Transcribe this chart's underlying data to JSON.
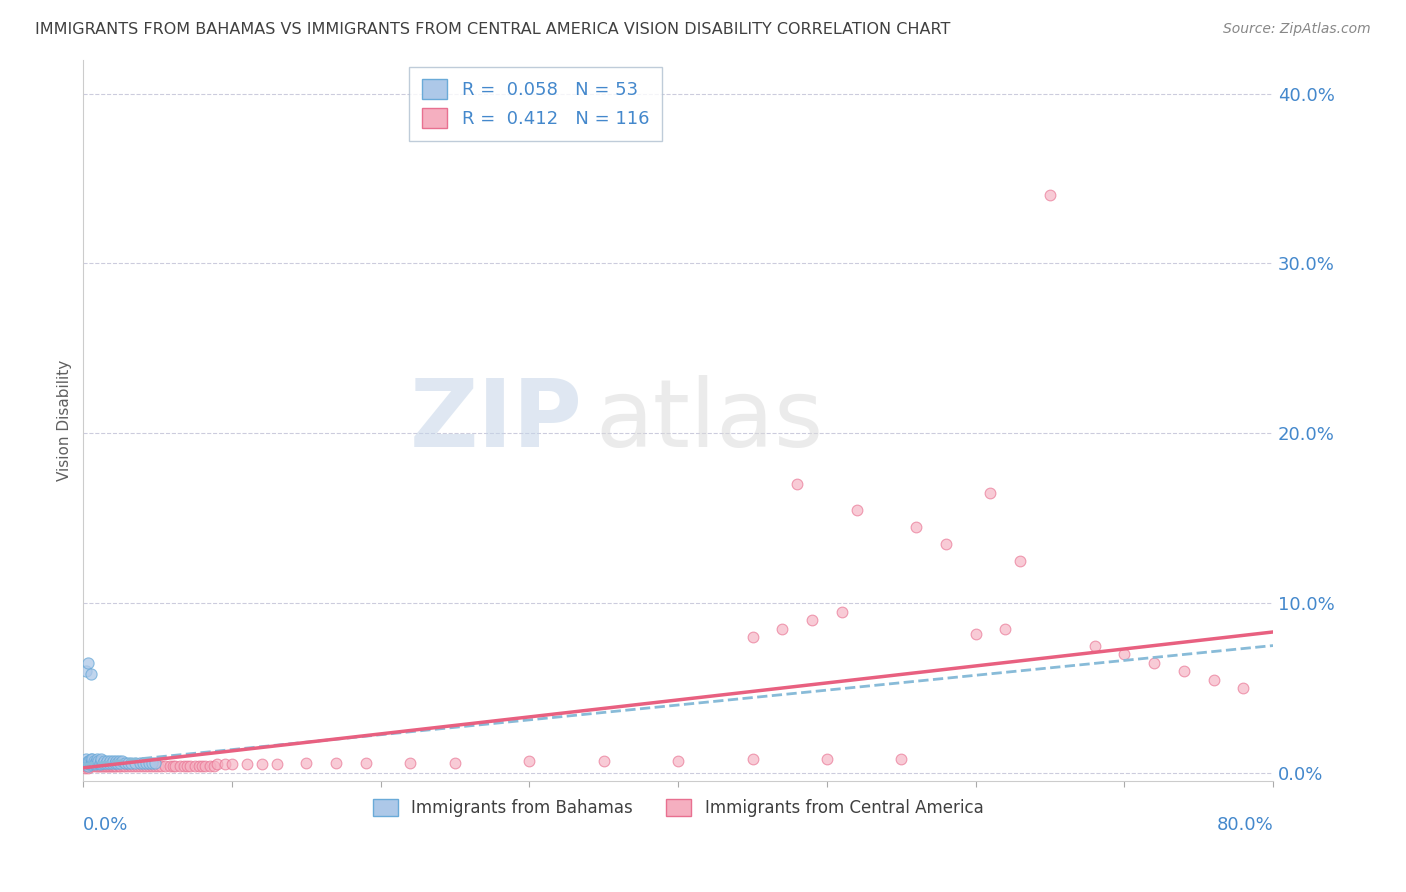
{
  "title": "IMMIGRANTS FROM BAHAMAS VS IMMIGRANTS FROM CENTRAL AMERICA VISION DISABILITY CORRELATION CHART",
  "source": "Source: ZipAtlas.com",
  "ylabel": "Vision Disability",
  "ytick_labels": [
    "0.0%",
    "10.0%",
    "20.0%",
    "30.0%",
    "40.0%"
  ],
  "ytick_values": [
    0.0,
    0.1,
    0.2,
    0.3,
    0.4
  ],
  "xlim": [
    0.0,
    0.8
  ],
  "ylim": [
    -0.005,
    0.42
  ],
  "legend_bahamas": "Immigrants from Bahamas",
  "legend_central_america": "Immigrants from Central America",
  "R_bahamas": 0.058,
  "N_bahamas": 53,
  "R_central_america": 0.412,
  "N_central_america": 116,
  "color_bahamas": "#adc8e8",
  "color_central_america": "#f5afc0",
  "color_edge_bahamas": "#6aaad8",
  "color_edge_central_america": "#e87090",
  "color_line_bahamas": "#88bbd8",
  "color_line_central_america": "#e86080",
  "color_text_blue": "#4488cc",
  "background_color": "#ffffff",
  "grid_color": "#ccccdd",
  "title_color": "#404040",
  "source_color": "#888888",
  "bahamas_x": [
    0.001,
    0.002,
    0.002,
    0.003,
    0.003,
    0.003,
    0.004,
    0.004,
    0.005,
    0.005,
    0.005,
    0.006,
    0.006,
    0.006,
    0.007,
    0.007,
    0.008,
    0.008,
    0.009,
    0.009,
    0.01,
    0.01,
    0.011,
    0.011,
    0.012,
    0.012,
    0.013,
    0.014,
    0.015,
    0.016,
    0.017,
    0.018,
    0.019,
    0.02,
    0.021,
    0.022,
    0.023,
    0.024,
    0.025,
    0.026,
    0.028,
    0.03,
    0.032,
    0.035,
    0.038,
    0.04,
    0.042,
    0.044,
    0.046,
    0.048,
    0.002,
    0.003,
    0.005
  ],
  "bahamas_y": [
    0.005,
    0.006,
    0.008,
    0.004,
    0.006,
    0.007,
    0.005,
    0.007,
    0.006,
    0.008,
    0.005,
    0.006,
    0.007,
    0.008,
    0.006,
    0.007,
    0.005,
    0.006,
    0.007,
    0.008,
    0.006,
    0.007,
    0.005,
    0.006,
    0.007,
    0.008,
    0.006,
    0.007,
    0.006,
    0.007,
    0.006,
    0.007,
    0.006,
    0.007,
    0.006,
    0.007,
    0.006,
    0.007,
    0.006,
    0.007,
    0.006,
    0.006,
    0.006,
    0.006,
    0.006,
    0.006,
    0.006,
    0.006,
    0.006,
    0.006,
    0.06,
    0.065,
    0.058
  ],
  "central_america_x": [
    0.001,
    0.001,
    0.002,
    0.002,
    0.002,
    0.003,
    0.003,
    0.003,
    0.004,
    0.004,
    0.004,
    0.005,
    0.005,
    0.005,
    0.006,
    0.006,
    0.006,
    0.007,
    0.007,
    0.008,
    0.008,
    0.008,
    0.009,
    0.009,
    0.01,
    0.01,
    0.011,
    0.011,
    0.012,
    0.012,
    0.013,
    0.013,
    0.014,
    0.015,
    0.015,
    0.016,
    0.017,
    0.018,
    0.018,
    0.019,
    0.02,
    0.02,
    0.021,
    0.022,
    0.023,
    0.024,
    0.025,
    0.026,
    0.027,
    0.028,
    0.03,
    0.03,
    0.032,
    0.034,
    0.035,
    0.036,
    0.038,
    0.039,
    0.04,
    0.042,
    0.044,
    0.045,
    0.046,
    0.048,
    0.05,
    0.052,
    0.055,
    0.058,
    0.06,
    0.062,
    0.065,
    0.068,
    0.07,
    0.072,
    0.075,
    0.078,
    0.08,
    0.082,
    0.085,
    0.088,
    0.09,
    0.095,
    0.1,
    0.11,
    0.12,
    0.13,
    0.15,
    0.17,
    0.19,
    0.22,
    0.25,
    0.3,
    0.35,
    0.4,
    0.45,
    0.5,
    0.55,
    0.6,
    0.62,
    0.65,
    0.68,
    0.7,
    0.72,
    0.74,
    0.76,
    0.78,
    0.48,
    0.52,
    0.56,
    0.58,
    0.61,
    0.63,
    0.45,
    0.47,
    0.49,
    0.51
  ],
  "central_america_y": [
    0.003,
    0.004,
    0.004,
    0.005,
    0.006,
    0.003,
    0.004,
    0.005,
    0.004,
    0.005,
    0.006,
    0.004,
    0.005,
    0.006,
    0.004,
    0.005,
    0.006,
    0.005,
    0.006,
    0.004,
    0.005,
    0.006,
    0.004,
    0.005,
    0.004,
    0.005,
    0.004,
    0.005,
    0.004,
    0.005,
    0.004,
    0.005,
    0.004,
    0.004,
    0.005,
    0.004,
    0.004,
    0.004,
    0.005,
    0.004,
    0.004,
    0.005,
    0.004,
    0.004,
    0.005,
    0.004,
    0.004,
    0.005,
    0.004,
    0.004,
    0.004,
    0.005,
    0.004,
    0.004,
    0.005,
    0.004,
    0.004,
    0.005,
    0.004,
    0.004,
    0.004,
    0.005,
    0.004,
    0.004,
    0.004,
    0.004,
    0.004,
    0.004,
    0.004,
    0.004,
    0.004,
    0.004,
    0.004,
    0.004,
    0.004,
    0.004,
    0.004,
    0.004,
    0.004,
    0.004,
    0.005,
    0.005,
    0.005,
    0.005,
    0.005,
    0.005,
    0.006,
    0.006,
    0.006,
    0.006,
    0.006,
    0.007,
    0.007,
    0.007,
    0.008,
    0.008,
    0.008,
    0.082,
    0.085,
    0.34,
    0.075,
    0.07,
    0.065,
    0.06,
    0.055,
    0.05,
    0.17,
    0.155,
    0.145,
    0.135,
    0.165,
    0.125,
    0.08,
    0.085,
    0.09,
    0.095
  ],
  "trendline_bah_x0": 0.0,
  "trendline_bah_y0": 0.005,
  "trendline_bah_x1": 0.8,
  "trendline_bah_y1": 0.075,
  "trendline_ca_x0": 0.0,
  "trendline_ca_y0": 0.003,
  "trendline_ca_x1": 0.8,
  "trendline_ca_y1": 0.083
}
